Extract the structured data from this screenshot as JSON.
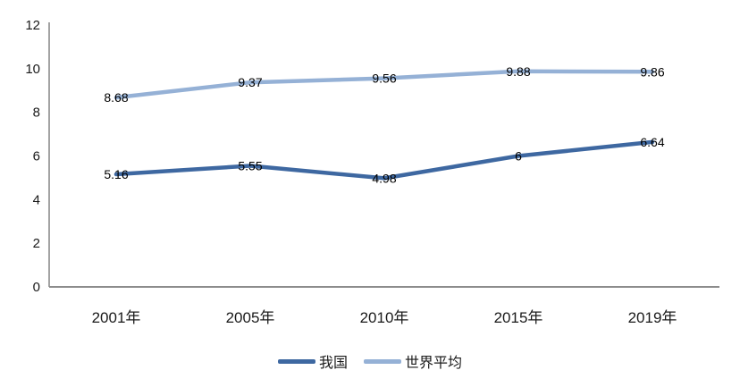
{
  "chart_data": {
    "type": "line",
    "title": "",
    "xlabel": "",
    "ylabel": "",
    "categories": [
      "2001年",
      "2005年",
      "2010年",
      "2015年",
      "2019年"
    ],
    "series": [
      {
        "name": "我国",
        "values": [
          5.16,
          5.55,
          4.98,
          6,
          6.64
        ],
        "labels": [
          "5.16",
          "5.55",
          "4.98",
          "6",
          "6.64"
        ],
        "color": "#3E68A1"
      },
      {
        "name": "世界平均",
        "values": [
          8.68,
          9.37,
          9.56,
          9.88,
          9.86
        ],
        "labels": [
          "8.68",
          "9.37",
          "9.56",
          "9.88",
          "9.86"
        ],
        "color": "#95B1D6"
      }
    ],
    "ylim": [
      0,
      12
    ],
    "yticks": [
      "0",
      "2",
      "4",
      "6",
      "8",
      "10",
      "12"
    ],
    "grid": false,
    "legend_position": "bottom",
    "data_label_position": "center",
    "axis_color": "#8C8C8C",
    "text_color": "#1A1A1A"
  }
}
